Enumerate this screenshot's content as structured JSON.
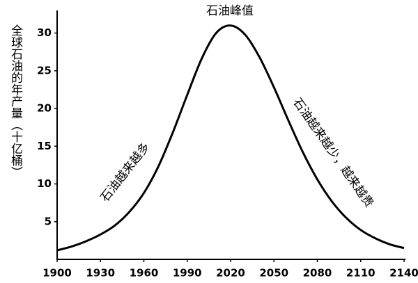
{
  "chart_data": {
    "type": "line",
    "y_label": "全球石油的年产量（十亿桶）",
    "annotations": [
      "石油峰值",
      "石油越来越多",
      "石油越来越少，越来越贵"
    ],
    "x": [
      1900,
      1910,
      1920,
      1930,
      1940,
      1950,
      1960,
      1970,
      1980,
      1990,
      2000,
      2010,
      2020,
      2030,
      2040,
      2050,
      2060,
      2070,
      2080,
      2090,
      2100,
      2110,
      2120,
      2130,
      2140
    ],
    "values": [
      1.2,
      1.7,
      2.4,
      3.3,
      4.5,
      6.3,
      8.8,
      12.3,
      16.8,
      21.8,
      26.6,
      30.0,
      31.0,
      29.8,
      26.8,
      22.8,
      18.4,
      14.2,
      10.6,
      7.7,
      5.5,
      3.9,
      2.8,
      2.0,
      1.5
    ],
    "color": "#000000",
    "xlim": [
      1900,
      2140
    ],
    "xticks": [
      1900,
      1930,
      1960,
      1990,
      2020,
      2050,
      2080,
      2110,
      2140
    ],
    "ylim": [
      0,
      33
    ],
    "yticks": [
      5,
      10,
      15,
      20,
      25,
      30
    ]
  }
}
